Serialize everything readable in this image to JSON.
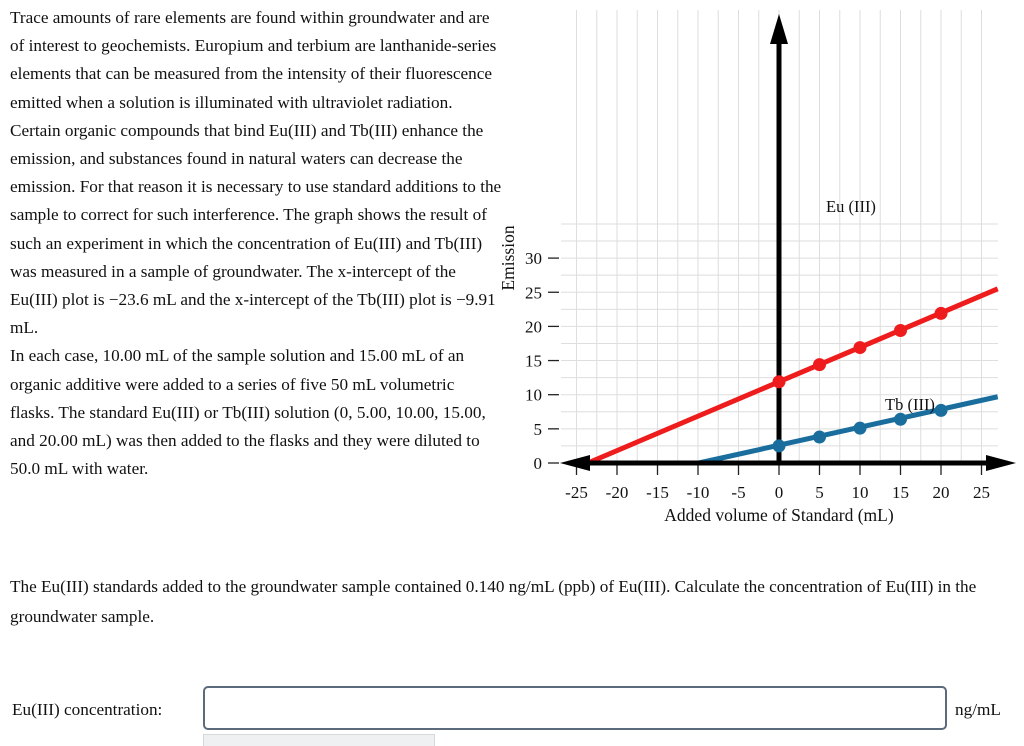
{
  "question": {
    "paragraph1": "Trace amounts of rare elements are found within groundwater and are of interest to geochemists. Europium and terbium are lanthanide-series elements that can be measured from the intensity of their fluorescence emitted when a solution is illuminated with ultraviolet radiation. Certain organic compounds that bind Eu(III) and Tb(III) enhance the emission, and substances found in natural waters can decrease the emission. For that reason it is necessary to use standard additions to the sample to correct for such interference. The graph shows the result of such an experiment in which the concentration of Eu(III) and Tb(III) was measured in a sample of groundwater. The x-intercept of the Eu(III) plot is −23.6 mL and the x-intercept of the Tb(III) plot is −9.91 mL.",
    "paragraph1b": "In each case, 10.00 mL of the sample solution and 15.00 mL of an organic additive were added to a series of five 50 mL volumetric flasks. The standard Eu(III) or Tb(III) solution (0, 5.00, 10.00, 15.00, and 20.00 mL) was then added to the flasks and they were diluted to 50.0 mL with water.",
    "paragraph2": "The Eu(III) standards added to the groundwater sample contained 0.140 ng/mL (ppb) of Eu(III). Calculate the concentration of Eu(III) in the groundwater sample."
  },
  "answer": {
    "label": "Eu(III) concentration:",
    "value": "",
    "placeholder": "",
    "unit": "ng/mL"
  },
  "chart_data": {
    "type": "line",
    "xlabel": "Added volume of Standard (mL)",
    "ylabel": "Emission",
    "xlim": [
      -25,
      25
    ],
    "ylim": [
      0,
      30
    ],
    "xticks": [
      "-25",
      "-20",
      "-15",
      "-10",
      "-5",
      "0",
      "5",
      "10",
      "15",
      "20",
      "25"
    ],
    "yticks": [
      "0",
      "5",
      "10",
      "15",
      "20",
      "25",
      "30"
    ],
    "grid": true,
    "series": [
      {
        "name": "Eu (III)",
        "color": "#ee1c1c",
        "points": [
          [
            0,
            11.9
          ],
          [
            5,
            14.4
          ],
          [
            10,
            16.9
          ],
          [
            15,
            19.4
          ],
          [
            20,
            21.9
          ]
        ],
        "line": [
          [
            -23.6,
            0
          ],
          [
            27,
            25.5
          ]
        ]
      },
      {
        "name": "Tb (III)",
        "color": "#1a6e9e",
        "points": [
          [
            0,
            2.5
          ],
          [
            5,
            3.8
          ],
          [
            10,
            5.1
          ],
          [
            15,
            6.4
          ],
          [
            20,
            7.7
          ]
        ],
        "line": [
          [
            -9.91,
            0
          ],
          [
            27,
            9.7
          ]
        ]
      }
    ]
  }
}
